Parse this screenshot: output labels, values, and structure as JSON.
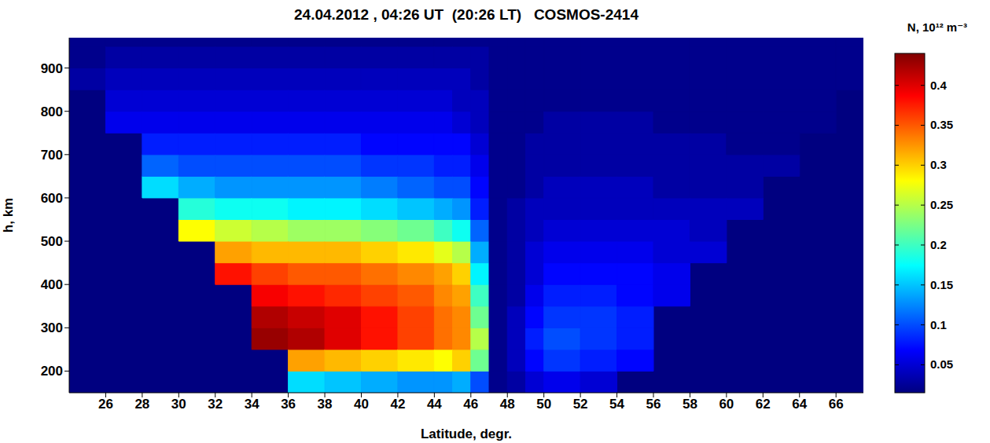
{
  "chart_data": {
    "type": "heatmap",
    "title": "24.04.2012 , 04:26 UT  (20:26 LT)   COSMOS-2414",
    "x_label": "Latitude, degr.",
    "y_label": "h, km",
    "xlim": [
      24,
      67.5
    ],
    "ylim": [
      150,
      970
    ],
    "xticks": [
      26,
      28,
      30,
      32,
      34,
      36,
      38,
      40,
      42,
      44,
      46,
      48,
      50,
      52,
      54,
      56,
      58,
      60,
      62,
      64,
      66
    ],
    "yticks": [
      200,
      300,
      400,
      500,
      600,
      700,
      800,
      900
    ],
    "x_edges": [
      24,
      26,
      28,
      30,
      32,
      34,
      36,
      38,
      40,
      42,
      44,
      45,
      46,
      47,
      48,
      49,
      50,
      52,
      54,
      56,
      58,
      60,
      62,
      64,
      66,
      67.5
    ],
    "y_edges": [
      150,
      200,
      250,
      300,
      350,
      400,
      450,
      500,
      550,
      600,
      650,
      700,
      750,
      800,
      850,
      900,
      950,
      970
    ],
    "values": [
      [
        null,
        null,
        null,
        null,
        null,
        null,
        null,
        null,
        null,
        null,
        null,
        null,
        null,
        null,
        0.03,
        0.02,
        0.02
      ],
      [
        null,
        null,
        null,
        null,
        null,
        null,
        null,
        null,
        null,
        null,
        null,
        null,
        0.06,
        0.05,
        0.04,
        0.03,
        0.02
      ],
      [
        null,
        null,
        null,
        null,
        null,
        null,
        null,
        null,
        null,
        0.16,
        0.11,
        0.08,
        0.06,
        0.05,
        0.04,
        0.03,
        0.02
      ],
      [
        null,
        null,
        null,
        null,
        null,
        null,
        null,
        0.28,
        0.19,
        0.14,
        0.1,
        0.08,
        0.06,
        0.05,
        0.04,
        0.03,
        0.02
      ],
      [
        null,
        null,
        null,
        null,
        null,
        0.38,
        0.32,
        0.26,
        0.18,
        0.13,
        0.1,
        0.08,
        0.06,
        0.05,
        0.04,
        0.03,
        0.02
      ],
      [
        null,
        null,
        0.43,
        0.42,
        0.39,
        0.36,
        0.31,
        0.25,
        0.18,
        0.13,
        0.1,
        0.08,
        0.06,
        0.05,
        0.04,
        0.03,
        0.02
      ],
      [
        0.16,
        0.32,
        0.42,
        0.41,
        0.38,
        0.35,
        0.31,
        0.24,
        0.17,
        0.13,
        0.1,
        0.08,
        0.06,
        0.05,
        0.04,
        0.03,
        0.02
      ],
      [
        0.15,
        0.31,
        0.4,
        0.4,
        0.37,
        0.35,
        0.31,
        0.24,
        0.17,
        0.13,
        0.1,
        0.08,
        0.06,
        0.05,
        0.04,
        0.03,
        0.02
      ],
      [
        0.14,
        0.3,
        0.38,
        0.38,
        0.36,
        0.34,
        0.3,
        0.23,
        0.16,
        0.12,
        0.09,
        0.07,
        0.06,
        0.05,
        0.04,
        0.03,
        0.02
      ],
      [
        0.13,
        0.29,
        0.36,
        0.36,
        0.35,
        0.33,
        0.29,
        0.22,
        0.15,
        0.11,
        0.09,
        0.07,
        0.06,
        0.05,
        0.04,
        0.03,
        0.02
      ],
      [
        0.13,
        0.28,
        0.34,
        0.34,
        0.33,
        0.32,
        0.27,
        0.2,
        0.14,
        0.1,
        0.08,
        0.07,
        0.06,
        0.05,
        0.04,
        0.03,
        0.02
      ],
      [
        0.14,
        0.3,
        0.33,
        0.33,
        0.32,
        0.3,
        0.25,
        0.18,
        0.13,
        0.1,
        0.08,
        0.07,
        0.05,
        0.04,
        0.04,
        0.03,
        0.02
      ],
      [
        0.1,
        0.22,
        0.25,
        0.22,
        0.2,
        0.17,
        0.14,
        0.11,
        0.08,
        0.07,
        0.06,
        0.05,
        0.04,
        0.04,
        0.03,
        0.03,
        0.02
      ],
      [
        0.02,
        0.02,
        0.02,
        0.02,
        0.02,
        0.02,
        0.02,
        0.02,
        0.02,
        0.02,
        0.02,
        0.02,
        0.02,
        0.02,
        0.02,
        0.02,
        0.02
      ],
      [
        0.03,
        0.04,
        0.04,
        0.04,
        0.03,
        0.03,
        0.03,
        0.03,
        0.03,
        0.02,
        0.02,
        0.02,
        0.02,
        0.02,
        0.02,
        0.02,
        0.02
      ],
      [
        0.05,
        0.07,
        0.08,
        0.07,
        0.06,
        0.05,
        0.05,
        0.04,
        0.04,
        0.03,
        0.03,
        0.03,
        0.02,
        0.02,
        0.02,
        0.02,
        0.02
      ],
      [
        0.06,
        0.09,
        0.1,
        0.09,
        0.08,
        0.07,
        0.06,
        0.05,
        0.04,
        0.04,
        0.03,
        0.03,
        0.03,
        0.02,
        0.02,
        0.02,
        0.02
      ],
      [
        0.05,
        0.08,
        0.09,
        0.09,
        0.08,
        0.07,
        0.06,
        0.05,
        0.04,
        0.04,
        0.03,
        0.03,
        0.03,
        0.02,
        0.02,
        0.02,
        0.02
      ],
      [
        null,
        0.07,
        0.08,
        0.08,
        0.07,
        0.07,
        0.06,
        0.05,
        0.04,
        0.04,
        0.03,
        0.03,
        0.03,
        0.02,
        0.02,
        0.02,
        0.02
      ],
      [
        null,
        null,
        null,
        null,
        0.06,
        0.06,
        0.05,
        0.05,
        0.04,
        0.03,
        0.03,
        0.03,
        0.02,
        0.02,
        0.02,
        0.02,
        0.02
      ],
      [
        null,
        null,
        null,
        null,
        null,
        null,
        0.05,
        0.04,
        0.04,
        0.03,
        0.03,
        0.03,
        0.02,
        0.02,
        0.02,
        0.02,
        0.02
      ],
      [
        null,
        null,
        null,
        null,
        null,
        null,
        null,
        null,
        0.04,
        0.03,
        0.03,
        0.02,
        0.02,
        0.02,
        0.02,
        0.02,
        0.02
      ],
      [
        null,
        null,
        null,
        null,
        null,
        null,
        null,
        null,
        null,
        null,
        0.03,
        0.02,
        0.02,
        0.02,
        0.02,
        0.02,
        0.02
      ],
      [
        null,
        null,
        null,
        null,
        null,
        null,
        null,
        null,
        null,
        null,
        null,
        null,
        0.02,
        0.02,
        0.02,
        0.02,
        0.02
      ],
      [
        null,
        null,
        null,
        null,
        null,
        null,
        null,
        null,
        null,
        null,
        null,
        null,
        null,
        null,
        0.02,
        0.02,
        0.02
      ]
    ],
    "colorbar_label": "N, 10¹² m⁻³",
    "colorbar_range": [
      0.015,
      0.44
    ],
    "colorbar_ticks": [
      0.05,
      0.1,
      0.15,
      0.2,
      0.25,
      0.3,
      0.35,
      0.4
    ]
  }
}
